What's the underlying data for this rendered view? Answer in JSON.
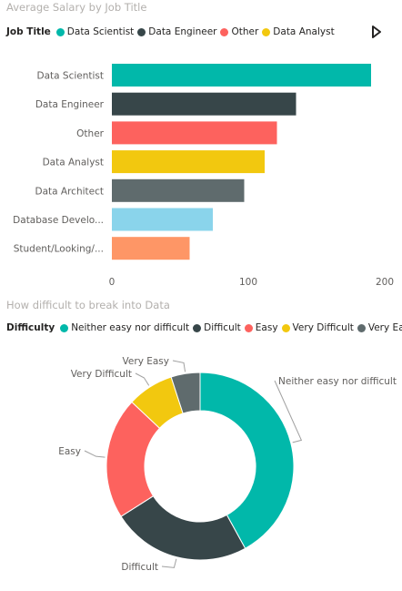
{
  "bar_visual": {
    "title": "Average Salary by Job Title",
    "legend_title": "Job Title",
    "legend": [
      {
        "label": "Data Scientist",
        "color": "#01b8aa"
      },
      {
        "label": "Data Engineer",
        "color": "#374649"
      },
      {
        "label": "Other",
        "color": "#fd625e"
      },
      {
        "label": "Data Analyst",
        "color": "#f2c80f"
      }
    ]
  },
  "donut_visual": {
    "title": "How difficult to break into Data",
    "legend_title": "Difficulty",
    "legend": [
      {
        "label": "Neither easy nor difficult",
        "color": "#01b8aa"
      },
      {
        "label": "Difficult",
        "color": "#374649"
      },
      {
        "label": "Easy",
        "color": "#fd625e"
      },
      {
        "label": "Very Difficult",
        "color": "#f2c80f"
      },
      {
        "label": "Very Easy",
        "color": "#5f6b6d"
      }
    ]
  },
  "chart_data": [
    {
      "type": "bar",
      "orientation": "horizontal",
      "title": "Average Salary by Job Title",
      "categories": [
        "Data Scientist",
        "Data Engineer",
        "Other",
        "Data Analyst",
        "Data Architect",
        "Database Develo...",
        "Student/Looking/..."
      ],
      "values": [
        190,
        135,
        121,
        112,
        97,
        74,
        57
      ],
      "colors": [
        "#01b8aa",
        "#374649",
        "#fd625e",
        "#f2c80f",
        "#5f6b6d",
        "#8ad4eb",
        "#fe9666"
      ],
      "xticks": [
        0,
        100,
        200
      ],
      "xlim": [
        0,
        200
      ],
      "grid": false
    },
    {
      "type": "pie",
      "donut": true,
      "title": "How difficult to break into Data",
      "labels": [
        "Neither easy nor difficult",
        "Difficult",
        "Easy",
        "Very Difficult",
        "Very Easy"
      ],
      "values": [
        42,
        24,
        21,
        8,
        5
      ],
      "colors": [
        "#01b8aa",
        "#374649",
        "#fd625e",
        "#f2c80f",
        "#5f6b6d"
      ]
    }
  ]
}
